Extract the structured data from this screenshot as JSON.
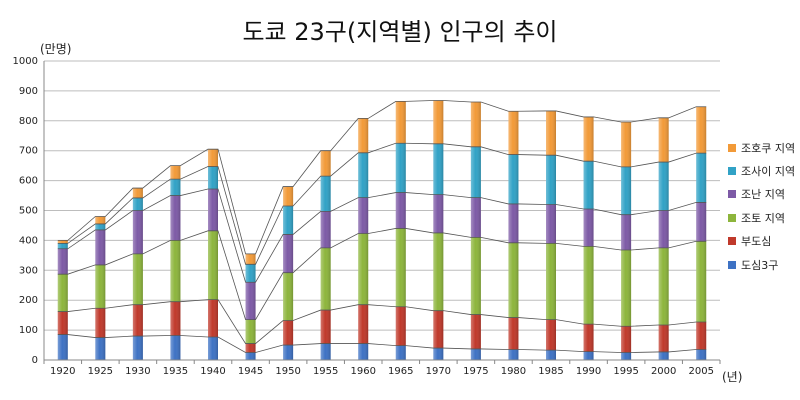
{
  "chart_data": {
    "type": "bar",
    "stacked": true,
    "title": "도쿄 23구(지역별) 인구의 추이",
    "ylabel": "(만명)",
    "xlabel": "(년)",
    "ylim": [
      0,
      1000
    ],
    "yticks": [
      0,
      100,
      200,
      300,
      400,
      500,
      600,
      700,
      800,
      900,
      1000
    ],
    "grid": true,
    "legend_position": "right",
    "categories": [
      "1920",
      "1925",
      "1930",
      "1935",
      "1940",
      "1945",
      "1950",
      "1955",
      "1960",
      "1965",
      "1970",
      "1975",
      "1980",
      "1985",
      "1990",
      "1995",
      "2000",
      "2005"
    ],
    "series": [
      {
        "name": "도심3구",
        "color": "#3e72c4",
        "values": [
          85,
          75,
          80,
          82,
          77,
          25,
          50,
          55,
          55,
          48,
          40,
          37,
          35,
          33,
          28,
          25,
          27,
          35
        ]
      },
      {
        "name": "부도심",
        "color": "#c0392b",
        "values": [
          77,
          98,
          105,
          113,
          125,
          30,
          82,
          112,
          130,
          130,
          125,
          115,
          107,
          102,
          92,
          88,
          90,
          92
        ]
      },
      {
        "name": "조토 지역",
        "color": "#8db53c",
        "values": [
          125,
          145,
          170,
          205,
          230,
          80,
          160,
          208,
          238,
          262,
          260,
          258,
          250,
          255,
          260,
          255,
          258,
          270
        ]
      },
      {
        "name": "조난 지역",
        "color": "#7d5aa6",
        "values": [
          85,
          117,
          145,
          150,
          140,
          125,
          128,
          122,
          120,
          120,
          128,
          133,
          130,
          130,
          125,
          118,
          125,
          130
        ]
      },
      {
        "name": "조사이 지역",
        "color": "#31a2c6",
        "values": [
          18,
          20,
          42,
          55,
          75,
          60,
          95,
          118,
          150,
          165,
          170,
          170,
          165,
          165,
          160,
          160,
          162,
          165
        ]
      },
      {
        "name": "조호쿠 지역",
        "color": "#f29a38",
        "values": [
          10,
          25,
          33,
          45,
          58,
          35,
          65,
          85,
          115,
          140,
          145,
          150,
          145,
          148,
          148,
          150,
          148,
          155
        ]
      }
    ]
  }
}
